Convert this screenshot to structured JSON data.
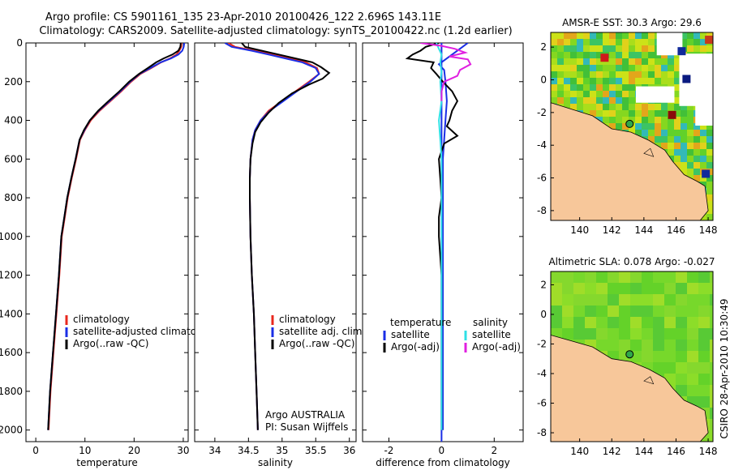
{
  "header": {
    "line1": "Argo profile: CS 5901161_135 23-Apr-2010 20100426_122 2.696S 143.11E",
    "line2": "Climatology: CARS2009. Satellite-adjusted climatology: synTS_20100422.nc (1.2d earlier)"
  },
  "side_label": "CSIRO 28-Apr-2010 10:30:49",
  "colors": {
    "climatology": "#e8281e",
    "satellite": "#1a2ee6",
    "argo": "#000000",
    "satellite_sal": "#2fe0e6",
    "argo_sal": "#e020e0",
    "land": "#f7c79a"
  },
  "chart_data": [
    {
      "type": "line",
      "panel": "temperature",
      "xlabel": "temperature",
      "xlim": [
        -2,
        31
      ],
      "ylim": [
        2060,
        0
      ],
      "x_ticks": [
        0,
        10,
        20,
        30
      ],
      "y_ticks": [
        0,
        200,
        400,
        600,
        800,
        1000,
        1200,
        1400,
        1600,
        1800,
        2000
      ],
      "legend": [
        "climatology",
        "satellite-adjusted climatology",
        "Argo(..raw -QC)"
      ],
      "series": [
        {
          "name": "climatology",
          "color": "#e8281e",
          "points": [
            [
              29.6,
              0
            ],
            [
              29.6,
              20
            ],
            [
              29.2,
              40
            ],
            [
              28.6,
              60
            ],
            [
              27.3,
              80
            ],
            [
              25.5,
              100
            ],
            [
              23.5,
              130
            ],
            [
              21.3,
              160
            ],
            [
              19.4,
              200
            ],
            [
              17.4,
              250
            ],
            [
              15.2,
              300
            ],
            [
              13.0,
              350
            ],
            [
              11.2,
              400
            ],
            [
              10.0,
              450
            ],
            [
              9.0,
              500
            ],
            [
              8.2,
              600
            ],
            [
              7.3,
              700
            ],
            [
              6.5,
              800
            ],
            [
              5.9,
              900
            ],
            [
              5.3,
              1000
            ],
            [
              4.8,
              1200
            ],
            [
              4.2,
              1400
            ],
            [
              3.6,
              1600
            ],
            [
              3.0,
              1800
            ],
            [
              2.6,
              2000
            ]
          ]
        },
        {
          "name": "satellite-adjusted climatology",
          "color": "#1a2ee6",
          "points": [
            [
              30.2,
              0
            ],
            [
              30.1,
              20
            ],
            [
              29.8,
              40
            ],
            [
              29.0,
              60
            ],
            [
              27.5,
              80
            ],
            [
              25.4,
              100
            ],
            [
              23.3,
              130
            ],
            [
              21.1,
              160
            ],
            [
              19.2,
              200
            ],
            [
              17.2,
              250
            ],
            [
              15.0,
              300
            ],
            [
              12.8,
              350
            ],
            [
              11.0,
              400
            ],
            [
              9.9,
              450
            ],
            [
              8.9,
              500
            ],
            [
              8.1,
              600
            ],
            [
              7.2,
              700
            ],
            [
              6.4,
              800
            ],
            [
              5.8,
              900
            ],
            [
              5.2,
              1000
            ],
            [
              4.7,
              1200
            ],
            [
              4.1,
              1400
            ],
            [
              3.5,
              1600
            ],
            [
              2.9,
              1800
            ],
            [
              2.5,
              2000
            ]
          ]
        },
        {
          "name": "Argo(..raw -QC)",
          "color": "#000000",
          "points": [
            [
              29.5,
              0
            ],
            [
              29.4,
              20
            ],
            [
              29.0,
              40
            ],
            [
              27.8,
              60
            ],
            [
              26.0,
              80
            ],
            [
              24.5,
              100
            ],
            [
              22.8,
              130
            ],
            [
              21.0,
              160
            ],
            [
              19.0,
              200
            ],
            [
              17.0,
              250
            ],
            [
              14.8,
              300
            ],
            [
              12.7,
              350
            ],
            [
              11.0,
              400
            ],
            [
              9.8,
              450
            ],
            [
              8.9,
              500
            ],
            [
              8.1,
              600
            ],
            [
              7.2,
              700
            ],
            [
              6.4,
              800
            ],
            [
              5.8,
              900
            ],
            [
              5.2,
              1000
            ],
            [
              4.7,
              1200
            ],
            [
              4.1,
              1400
            ],
            [
              3.5,
              1600
            ],
            [
              2.9,
              1800
            ],
            [
              2.5,
              2000
            ]
          ]
        }
      ]
    },
    {
      "type": "line",
      "panel": "salinity",
      "xlabel": "salinity",
      "xlim": [
        33.7,
        36.1
      ],
      "ylim": [
        2060,
        0
      ],
      "x_ticks": [
        34,
        34.5,
        35,
        35.5,
        36
      ],
      "legend": [
        "climatology",
        "satellite adj. clim.",
        "Argo(..raw -QC)"
      ],
      "annotation": [
        "Argo AUSTRALIA",
        "PI: Susan Wijffels"
      ],
      "series": [
        {
          "name": "climatology",
          "color": "#e8281e",
          "points": [
            [
              34.2,
              0
            ],
            [
              34.3,
              20
            ],
            [
              34.6,
              40
            ],
            [
              34.85,
              60
            ],
            [
              35.1,
              80
            ],
            [
              35.35,
              100
            ],
            [
              35.52,
              130
            ],
            [
              35.55,
              160
            ],
            [
              35.4,
              200
            ],
            [
              35.2,
              250
            ],
            [
              35.0,
              300
            ],
            [
              34.8,
              350
            ],
            [
              34.68,
              400
            ],
            [
              34.6,
              450
            ],
            [
              34.56,
              500
            ],
            [
              34.53,
              600
            ],
            [
              34.52,
              700
            ],
            [
              34.52,
              800
            ],
            [
              34.53,
              1000
            ],
            [
              34.55,
              1200
            ],
            [
              34.58,
              1400
            ],
            [
              34.6,
              1600
            ],
            [
              34.62,
              1800
            ],
            [
              34.64,
              2000
            ]
          ]
        },
        {
          "name": "satellite adj. clim.",
          "color": "#1a2ee6",
          "points": [
            [
              34.15,
              0
            ],
            [
              34.25,
              20
            ],
            [
              34.55,
              40
            ],
            [
              34.8,
              60
            ],
            [
              35.05,
              80
            ],
            [
              35.3,
              100
            ],
            [
              35.5,
              130
            ],
            [
              35.55,
              160
            ],
            [
              35.42,
              200
            ],
            [
              35.22,
              250
            ],
            [
              35.02,
              300
            ],
            [
              34.82,
              350
            ],
            [
              34.68,
              400
            ],
            [
              34.6,
              450
            ],
            [
              34.56,
              500
            ],
            [
              34.53,
              600
            ],
            [
              34.52,
              700
            ],
            [
              34.52,
              800
            ],
            [
              34.53,
              1000
            ],
            [
              34.55,
              1200
            ],
            [
              34.58,
              1400
            ],
            [
              34.6,
              1600
            ],
            [
              34.62,
              1800
            ],
            [
              34.64,
              2000
            ]
          ]
        },
        {
          "name": "Argo(..raw -QC)",
          "color": "#000000",
          "points": [
            [
              34.4,
              0
            ],
            [
              34.45,
              20
            ],
            [
              34.7,
              40
            ],
            [
              34.95,
              60
            ],
            [
              35.2,
              80
            ],
            [
              35.45,
              100
            ],
            [
              35.58,
              125
            ],
            [
              35.7,
              155
            ],
            [
              35.6,
              185
            ],
            [
              35.4,
              215
            ],
            [
              35.15,
              260
            ],
            [
              34.95,
              310
            ],
            [
              34.8,
              360
            ],
            [
              34.68,
              410
            ],
            [
              34.6,
              460
            ],
            [
              34.56,
              520
            ],
            [
              34.53,
              600
            ],
            [
              34.52,
              700
            ],
            [
              34.52,
              800
            ],
            [
              34.53,
              1000
            ],
            [
              34.55,
              1200
            ],
            [
              34.58,
              1400
            ],
            [
              34.6,
              1600
            ],
            [
              34.62,
              1800
            ],
            [
              34.64,
              2000
            ]
          ]
        }
      ]
    },
    {
      "type": "line",
      "panel": "difference",
      "xlabel": "difference from climatology",
      "xlim": [
        -3,
        3.1
      ],
      "ylim": [
        2060,
        0
      ],
      "x_ticks": [
        -2,
        0,
        2
      ],
      "legend_temperature": {
        "title": "temperature",
        "items": [
          "satellite",
          "Argo(-adj)"
        ]
      },
      "legend_salinity": {
        "title": "salinity",
        "items": [
          "satellite",
          "Argo(-adj)"
        ]
      },
      "series": [
        {
          "name": "temperature satellite",
          "color": "#1a2ee6",
          "points": [
            [
              1.0,
              0
            ],
            [
              0.8,
              20
            ],
            [
              0.5,
              50
            ],
            [
              0.2,
              80
            ],
            [
              -0.1,
              110
            ],
            [
              0.1,
              140
            ],
            [
              0.15,
              200
            ],
            [
              0.2,
              300
            ],
            [
              0.15,
              400
            ],
            [
              0.1,
              500
            ],
            [
              0.05,
              600
            ],
            [
              0.05,
              800
            ],
            [
              0.05,
              1000
            ],
            [
              0.05,
              1200
            ],
            [
              0.05,
              1400
            ],
            [
              0.05,
              1600
            ],
            [
              0.05,
              1800
            ],
            [
              0.05,
              2000
            ]
          ]
        },
        {
          "name": "temperature Argo(-adj)",
          "color": "#000000",
          "points": [
            [
              -0.1,
              0
            ],
            [
              -0.6,
              20
            ],
            [
              -0.8,
              40
            ],
            [
              -1.1,
              60
            ],
            [
              -1.3,
              80
            ],
            [
              -0.3,
              100
            ],
            [
              -0.4,
              130
            ],
            [
              -0.2,
              160
            ],
            [
              0.05,
              200
            ],
            [
              0.4,
              250
            ],
            [
              0.6,
              300
            ],
            [
              0.4,
              350
            ],
            [
              0.3,
              400
            ],
            [
              0.2,
              430
            ],
            [
              0.6,
              480
            ],
            [
              0.1,
              520
            ],
            [
              -0.1,
              600
            ],
            [
              -0.05,
              700
            ],
            [
              0.0,
              800
            ],
            [
              -0.1,
              900
            ],
            [
              -0.1,
              1000
            ],
            [
              0.0,
              1200
            ],
            [
              0.0,
              1400
            ],
            [
              0.0,
              1600
            ],
            [
              0.0,
              1800
            ],
            [
              0.0,
              2000
            ]
          ]
        },
        {
          "name": "salinity satellite",
          "color": "#2fe0e6",
          "points": [
            [
              -0.2,
              0
            ],
            [
              -0.1,
              30
            ],
            [
              0.0,
              60
            ],
            [
              -0.05,
              100
            ],
            [
              0.0,
              150
            ],
            [
              -0.05,
              200
            ],
            [
              0.0,
              300
            ],
            [
              -0.1,
              400
            ],
            [
              -0.05,
              500
            ],
            [
              0.0,
              600
            ],
            [
              0.0,
              800
            ],
            [
              0.0,
              1000
            ],
            [
              0.0,
              1200
            ],
            [
              0.0,
              1400
            ],
            [
              0.0,
              1600
            ],
            [
              0.0,
              1800
            ],
            [
              0.0,
              2000
            ]
          ]
        },
        {
          "name": "salinity Argo(-adj)",
          "color": "#e020e0",
          "points": [
            [
              -0.8,
              0
            ],
            [
              0.0,
              15
            ],
            [
              0.5,
              30
            ],
            [
              0.9,
              50
            ],
            [
              0.3,
              70
            ],
            [
              1.0,
              85
            ],
            [
              1.1,
              110
            ],
            [
              0.7,
              140
            ],
            [
              0.6,
              170
            ],
            [
              0.1,
              200
            ],
            [
              0.0,
              250
            ],
            [
              0.0,
              300
            ]
          ]
        }
      ]
    }
  ],
  "maps": [
    {
      "title": "AMSR-E SST: 30.3 Argo: 29.6",
      "x_ticks": [
        140,
        142,
        144,
        146,
        148
      ],
      "y_ticks": [
        2,
        0,
        -2,
        -4,
        -6,
        -8
      ],
      "xlim": [
        138.2,
        148.3
      ],
      "ylim": [
        -8.6,
        2.9
      ],
      "argo_lon": 143.11,
      "argo_lat": -2.696
    },
    {
      "title": "Altimetric SLA: 0.078 Argo: -0.027",
      "x_ticks": [
        140,
        142,
        144,
        146,
        148
      ],
      "y_ticks": [
        2,
        0,
        -2,
        -4,
        -6,
        -8
      ],
      "xlim": [
        138.2,
        148.3
      ],
      "ylim": [
        -8.6,
        2.9
      ],
      "argo_lon": 143.11,
      "argo_lat": -2.696
    }
  ]
}
